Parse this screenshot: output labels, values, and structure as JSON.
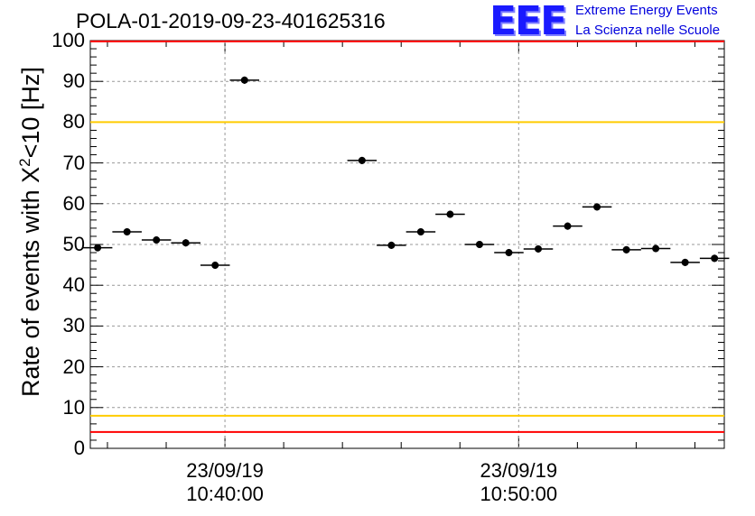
{
  "title": "POLA-01-2019-09-23-401625316",
  "logo": {
    "text": "EEE",
    "line1": "Extreme Energy Events",
    "line2": "La Scienza nelle Scuole"
  },
  "colors": {
    "red": "#ff0000",
    "yellow": "#ffcc00",
    "marker": "#000000",
    "grid": "#999999",
    "logo": "#1a1aff"
  },
  "chart_data": {
    "type": "scatter",
    "title": "POLA-01-2019-09-23-401625316",
    "ylabel_main": "Rate of events with X",
    "ylabel_sup": "2",
    "ylabel_tail": "<10 [Hz]",
    "ylim": [
      0,
      100
    ],
    "yticks": [
      "0",
      "10",
      "20",
      "30",
      "40",
      "50",
      "60",
      "70",
      "80",
      "90",
      "100"
    ],
    "xlim": [
      "10:35:25",
      "10:57:00"
    ],
    "xticks": [
      {
        "date": "23/09/19",
        "time": "10:40:00"
      },
      {
        "date": "23/09/19",
        "time": "10:50:00"
      }
    ],
    "grid": true,
    "hlines": [
      {
        "y": 99.8,
        "color": "red"
      },
      {
        "y": 80,
        "color": "yellow"
      },
      {
        "y": 8,
        "color": "yellow"
      },
      {
        "y": 4,
        "color": "red"
      }
    ],
    "bin_width": "00:01:00",
    "points": [
      {
        "x": "10:35:40",
        "y": 49.2
      },
      {
        "x": "10:36:40",
        "y": 53.1
      },
      {
        "x": "10:37:40",
        "y": 51.1
      },
      {
        "x": "10:38:40",
        "y": 50.4
      },
      {
        "x": "10:39:40",
        "y": 44.9
      },
      {
        "x": "10:40:40",
        "y": 90.3
      },
      {
        "x": "10:44:40",
        "y": 70.6
      },
      {
        "x": "10:45:40",
        "y": 49.8
      },
      {
        "x": "10:46:40",
        "y": 53.1
      },
      {
        "x": "10:47:40",
        "y": 57.4
      },
      {
        "x": "10:48:40",
        "y": 50.0
      },
      {
        "x": "10:49:40",
        "y": 48.0
      },
      {
        "x": "10:50:40",
        "y": 48.9
      },
      {
        "x": "10:51:40",
        "y": 54.5
      },
      {
        "x": "10:52:40",
        "y": 59.2
      },
      {
        "x": "10:53:40",
        "y": 48.7
      },
      {
        "x": "10:54:40",
        "y": 49.0
      },
      {
        "x": "10:55:40",
        "y": 45.6
      },
      {
        "x": "10:56:40",
        "y": 46.6
      }
    ]
  }
}
